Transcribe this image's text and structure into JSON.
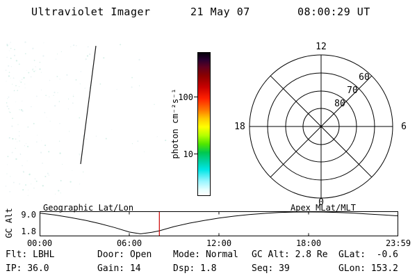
{
  "header": {
    "title": "Ultraviolet Imager",
    "date": "21 May 07",
    "time": "08:00:29 UT"
  },
  "colorbar": {
    "label": "photon cm⁻²s⁻¹",
    "tick_top": "100",
    "tick_bottom": "10"
  },
  "polar": {
    "mlt_top": "12",
    "mlt_right": "6",
    "mlt_bottom": "0",
    "mlt_left": "18",
    "lat_60": "60",
    "lat_70": "70",
    "lat_80": "80"
  },
  "stripchart": {
    "left_title": "Geographic Lat/Lon",
    "right_title": "Apex MLat/MLT",
    "ylabel": "GC Alt",
    "ytick_top": "9.0",
    "ytick_bottom": "1.8",
    "xticks": [
      "00:00",
      "06:00",
      "12:00",
      "18:00",
      "23:59"
    ]
  },
  "status": {
    "flt_label": "Flt:",
    "flt": "LBHL",
    "door_label": "Door:",
    "door": "Open",
    "mode_label": "Mode:",
    "mode": "Normal",
    "gcalt_label": "GC Alt:",
    "gcalt": "2.8 Re",
    "glat_label": "GLat:",
    "glat": "-0.6",
    "ip_label": "IP:",
    "ip": "36.0",
    "gain_label": "Gain:",
    "gain": "14",
    "dsp_label": "Dsp:",
    "dsp": "1.8",
    "seq_label": "Seq:",
    "seq": "39",
    "glon_label": "GLon:",
    "glon": "153.2"
  },
  "chart_data": [
    {
      "type": "line",
      "title": "Spacecraft geocentric altitude vs UT",
      "ylabel": "GC Alt",
      "x": [
        0,
        1,
        2,
        3,
        4,
        5,
        6,
        6.75,
        7.5,
        8,
        9,
        10,
        11,
        12,
        13,
        14,
        15,
        16,
        17,
        18,
        19,
        20,
        21,
        22,
        23,
        23.98
      ],
      "series": [
        {
          "name": "GC Alt (Re)",
          "values": [
            8.6,
            8.0,
            7.2,
            6.3,
            5.2,
            3.9,
            2.4,
            1.8,
            2.3,
            2.8,
            4.2,
            5.3,
            6.2,
            7.0,
            7.6,
            8.1,
            8.5,
            8.8,
            8.95,
            9.0,
            8.95,
            8.8,
            8.6,
            8.3,
            8.0,
            7.7
          ]
        }
      ],
      "xlim": [
        0,
        23.983
      ],
      "ylim": [
        1.0,
        9.2
      ],
      "ytick_values": [
        9.0,
        1.8
      ],
      "xtick_labels": [
        "00:00",
        "06:00",
        "12:00",
        "18:00",
        "23:59"
      ],
      "marker_hours": 8.008,
      "marker_color": "#cc0000",
      "axes_titles": [
        "Geographic Lat/Lon",
        "Apex MLat/MLT"
      ]
    },
    {
      "type": "heatmap",
      "title": "UVI image",
      "colorbar_label": "photon cm⁻²s⁻¹",
      "colorbar_ticks": [
        100,
        10
      ],
      "scale": "log",
      "polar_grid": {
        "mlt_labels": [
          "12",
          "18",
          "6",
          "0"
        ],
        "latitude_circles": [
          60,
          70,
          80
        ]
      }
    }
  ]
}
